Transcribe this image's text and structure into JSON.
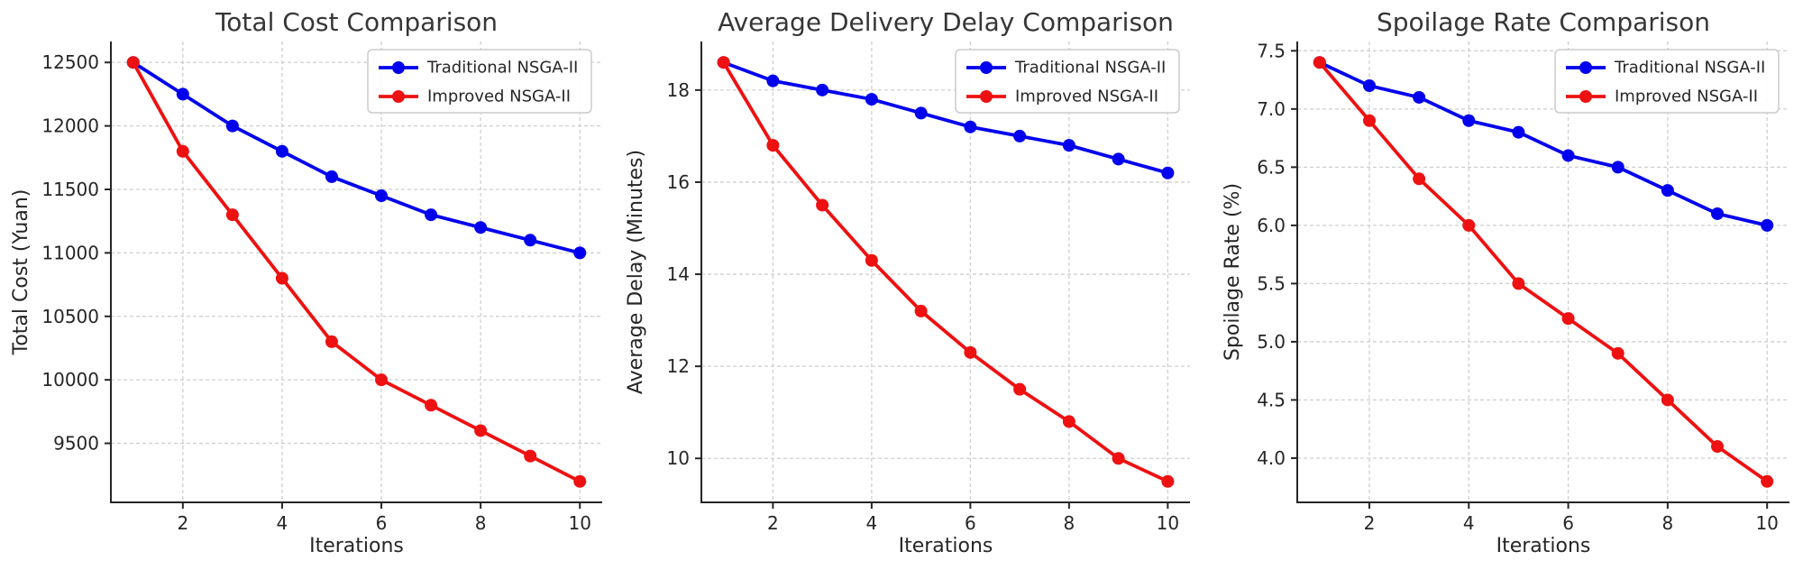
{
  "figure": {
    "background": "#ffffff",
    "text_color": "#262626",
    "title_color": "#363636",
    "grid_color": "#cfcfcf",
    "spine_color": "#262626",
    "legend_border_color": "#cccccc"
  },
  "chart_data": [
    {
      "type": "line",
      "title": "Total Cost Comparison",
      "xlabel": "Iterations",
      "ylabel": "Total Cost (Yuan)",
      "x": [
        1,
        2,
        3,
        4,
        5,
        6,
        7,
        8,
        9,
        10
      ],
      "series": [
        {
          "name": "Traditional NSGA-II",
          "color": "#0000ee",
          "values": [
            12500,
            12250,
            12000,
            11800,
            11600,
            11450,
            11300,
            11200,
            11100,
            11000
          ]
        },
        {
          "name": "Improved NSGA-II",
          "color": "#ee1111",
          "values": [
            12500,
            11800,
            11300,
            10800,
            10300,
            10000,
            9800,
            9600,
            9400,
            9200
          ]
        }
      ],
      "xlim": [
        0.55,
        10.45
      ],
      "ylim": [
        9035,
        12665
      ],
      "xticks": [
        2,
        4,
        6,
        8,
        10
      ],
      "xtick_labels": [
        "2",
        "4",
        "6",
        "8",
        "10"
      ],
      "yticks": [
        9500,
        10000,
        10500,
        11000,
        11500,
        12000,
        12500
      ],
      "ytick_labels": [
        "9500",
        "10000",
        "10500",
        "11000",
        "11500",
        "12000",
        "12500"
      ],
      "grid": true,
      "legend_position": "upper right"
    },
    {
      "type": "line",
      "title": "Average Delivery Delay Comparison",
      "xlabel": "Iterations",
      "ylabel": "Average Delay (Minutes)",
      "x": [
        1,
        2,
        3,
        4,
        5,
        6,
        7,
        8,
        9,
        10
      ],
      "series": [
        {
          "name": "Traditional NSGA-II",
          "color": "#0000ee",
          "values": [
            18.6,
            18.2,
            18.0,
            17.8,
            17.5,
            17.2,
            17.0,
            16.8,
            16.5,
            16.2
          ]
        },
        {
          "name": "Improved NSGA-II",
          "color": "#ee1111",
          "values": [
            18.6,
            16.8,
            15.5,
            14.3,
            13.2,
            12.3,
            11.5,
            10.8,
            10.0,
            9.5
          ]
        }
      ],
      "xlim": [
        0.55,
        10.45
      ],
      "ylim": [
        9.045,
        19.055
      ],
      "xticks": [
        2,
        4,
        6,
        8,
        10
      ],
      "xtick_labels": [
        "2",
        "4",
        "6",
        "8",
        "10"
      ],
      "yticks": [
        10,
        12,
        14,
        16,
        18
      ],
      "ytick_labels": [
        "10",
        "12",
        "14",
        "16",
        "18"
      ],
      "grid": true,
      "legend_position": "upper right"
    },
    {
      "type": "line",
      "title": "Spoilage Rate Comparison",
      "xlabel": "Iterations",
      "ylabel": "Spoilage Rate (%)",
      "x": [
        1,
        2,
        3,
        4,
        5,
        6,
        7,
        8,
        9,
        10
      ],
      "series": [
        {
          "name": "Traditional NSGA-II",
          "color": "#0000ee",
          "values": [
            7.4,
            7.2,
            7.1,
            6.9,
            6.8,
            6.6,
            6.5,
            6.3,
            6.1,
            6.0
          ]
        },
        {
          "name": "Improved NSGA-II",
          "color": "#ee1111",
          "values": [
            7.4,
            6.9,
            6.4,
            6.0,
            5.5,
            5.2,
            4.9,
            4.5,
            4.1,
            3.8
          ]
        }
      ],
      "xlim": [
        0.55,
        10.45
      ],
      "ylim": [
        3.62,
        7.58
      ],
      "xticks": [
        2,
        4,
        6,
        8,
        10
      ],
      "xtick_labels": [
        "2",
        "4",
        "6",
        "8",
        "10"
      ],
      "yticks": [
        4.0,
        4.5,
        5.0,
        5.5,
        6.0,
        6.5,
        7.0,
        7.5
      ],
      "ytick_labels": [
        "4.0",
        "4.5",
        "5.0",
        "5.5",
        "6.0",
        "6.5",
        "7.0",
        "7.5"
      ],
      "grid": true,
      "legend_position": "upper right"
    }
  ]
}
